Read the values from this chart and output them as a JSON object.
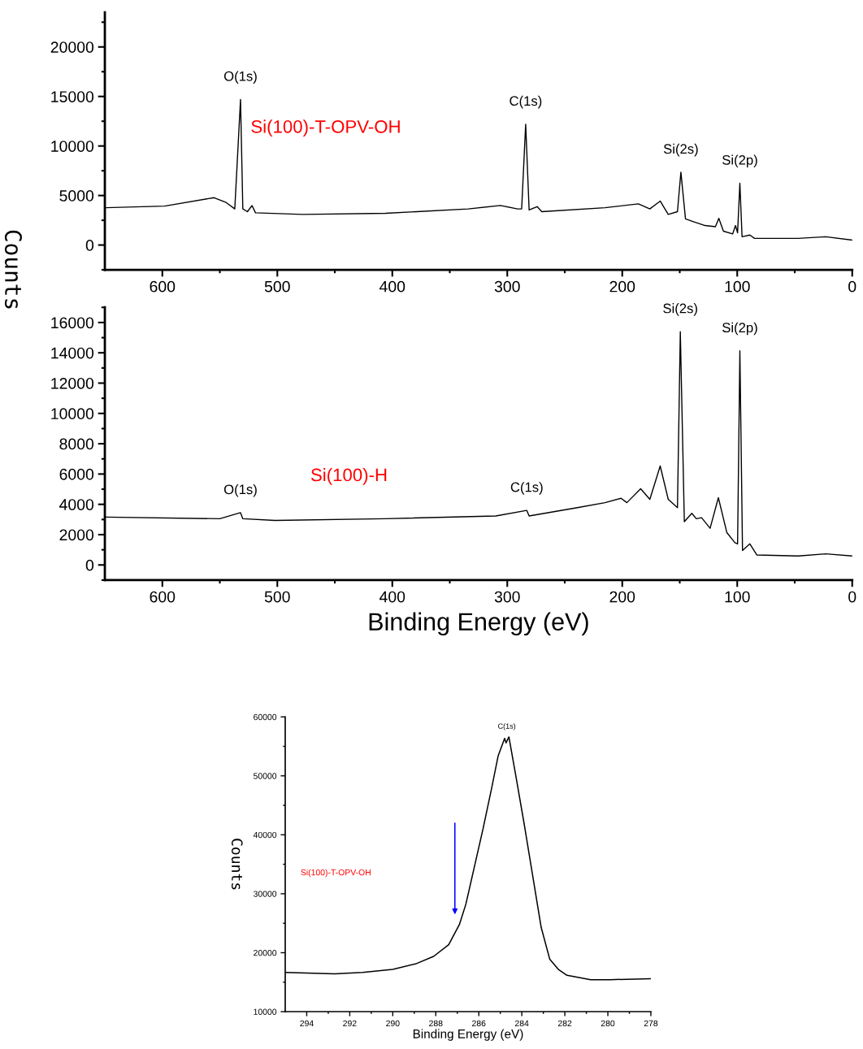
{
  "chart_data": [
    {
      "type": "line",
      "ylabel": "Counts",
      "x": [
        649,
        598,
        555,
        545,
        537,
        532,
        530,
        526,
        522,
        519,
        478,
        406,
        334,
        306,
        291,
        287.5,
        284,
        281,
        274,
        270,
        215,
        186,
        176,
        167,
        160,
        152,
        149,
        145,
        138,
        128,
        119,
        116,
        112,
        104,
        101.5,
        99.7,
        97.7,
        95.8,
        89,
        85,
        47,
        23,
        0
      ],
      "series": [
        {
          "color": "#000000",
          "values": [
            3770,
            3930,
            4780,
            4330,
            3650,
            14700,
            3650,
            3370,
            3990,
            3260,
            3090,
            3200,
            3650,
            3990,
            3650,
            3650,
            12200,
            3540,
            3880,
            3370,
            3770,
            4160,
            3650,
            4440,
            3090,
            3370,
            7360,
            2640,
            2360,
            1970,
            1850,
            2700,
            1400,
            1120,
            1970,
            1240,
            6240,
            840,
            1010,
            670,
            670,
            840,
            500
          ]
        }
      ],
      "xlim": [
        650,
        0
      ],
      "xticks": [
        600,
        {
          "value": 550,
          "label": null
        },
        500,
        {
          "value": 450,
          "label": null
        },
        400,
        {
          "value": 350,
          "label": null
        },
        300,
        {
          "value": 250,
          "label": null
        },
        200,
        {
          "value": 150,
          "label": null
        },
        100,
        {
          "value": 50,
          "label": null
        },
        0
      ],
      "ylim": [
        -2500,
        23500
      ],
      "yticks": [
        {
          "value": -2500,
          "label": null
        },
        0,
        {
          "value": 2500,
          "label": null
        },
        5000,
        {
          "value": 7500,
          "label": null
        },
        10000,
        {
          "value": 12500,
          "label": null
        },
        15000,
        {
          "value": 17500,
          "label": null
        },
        20000,
        {
          "value": 22500,
          "label": null
        }
      ],
      "grid": false,
      "legend": false,
      "annotations": [
        {
          "text": "O(1s)",
          "x": 532,
          "y": 14700
        },
        {
          "text": "C(1s)",
          "x": 284,
          "y": 12200
        },
        {
          "text": "Si(2s)",
          "x": 149,
          "y": 7360
        },
        {
          "text": "Si(2p)",
          "x": 97.7,
          "y": 6240
        },
        "Si(100)-T-OPV-OH"
      ]
    },
    {
      "type": "line",
      "xlabel": "Binding Energy (eV)",
      "x": [
        649,
        550,
        532,
        530,
        502,
        406,
        310,
        283,
        281,
        239,
        215,
        201,
        196,
        184,
        176,
        167,
        160,
        152,
        149.5,
        146,
        139.5,
        135.6,
        131,
        123.6,
        116.4,
        109,
        102,
        99.7,
        97.7,
        95.4,
        89,
        83,
        47,
        23,
        0
      ],
      "series": [
        {
          "color": "#000000",
          "values": [
            3160,
            3050,
            3450,
            3050,
            2940,
            3050,
            3230,
            3600,
            3230,
            3780,
            4110,
            4400,
            4110,
            5030,
            4330,
            6530,
            4330,
            3780,
            15400,
            2860,
            3410,
            3050,
            3120,
            2420,
            4440,
            2130,
            1470,
            1390,
            14130,
            950,
            1390,
            660,
            590,
            730,
            590
          ]
        }
      ],
      "xlim": [
        650,
        0
      ],
      "xticks": [
        600,
        {
          "value": 550,
          "label": null
        },
        500,
        {
          "value": 450,
          "label": null
        },
        400,
        {
          "value": 350,
          "label": null
        },
        300,
        {
          "value": 250,
          "label": null
        },
        200,
        {
          "value": 150,
          "label": null
        },
        100,
        {
          "value": 50,
          "label": null
        },
        0
      ],
      "ylim": [
        -1000,
        17000
      ],
      "yticks": [
        {
          "value": -1000,
          "label": null
        },
        0,
        {
          "value": 1000,
          "label": null
        },
        2000,
        {
          "value": 3000,
          "label": null
        },
        4000,
        {
          "value": 5000,
          "label": null
        },
        6000,
        {
          "value": 7000,
          "label": null
        },
        8000,
        {
          "value": 9000,
          "label": null
        },
        10000,
        {
          "value": 11000,
          "label": null
        },
        12000,
        {
          "value": 13000,
          "label": null
        },
        14000,
        {
          "value": 15000,
          "label": null
        },
        16000,
        {
          "value": 17000,
          "label": null
        }
      ],
      "grid": false,
      "legend": false,
      "annotations": [
        {
          "text": "O(1s)",
          "x": 532,
          "y": 3450
        },
        {
          "text": "C(1s)",
          "x": 283,
          "y": 3600
        },
        {
          "text": "Si(2s)",
          "x": 149.5,
          "y": 15400
        },
        {
          "text": "Si(2p)",
          "x": 97.7,
          "y": 14130
        },
        "Si(100)-H"
      ]
    },
    {
      "type": "line",
      "xlabel": "Binding Energy (eV)",
      "ylabel": "Counts",
      "x": [
        295,
        292.7,
        291.4,
        290.0,
        288.9,
        288.1,
        287.4,
        286.9,
        286.6,
        286.2,
        285.8,
        285.4,
        285.1,
        284.8,
        284.73,
        284.6,
        284.3,
        283.9,
        283.5,
        283.1,
        282.7,
        282.3,
        281.9,
        280.8,
        279.9,
        278
      ],
      "series": [
        {
          "color": "#000000",
          "values": [
            16660,
            16420,
            16660,
            17160,
            18150,
            19380,
            21350,
            24800,
            28250,
            34660,
            41070,
            47970,
            53400,
            56350,
            55600,
            56600,
            50440,
            42050,
            33180,
            24300,
            18880,
            17160,
            16170,
            15430,
            15430,
            15580
          ]
        }
      ],
      "xlim": [
        295,
        278
      ],
      "xticks": [
        294,
        {
          "value": 293,
          "label": null
        },
        292,
        {
          "value": 291,
          "label": null
        },
        290,
        {
          "value": 289,
          "label": null
        },
        288,
        {
          "value": 287,
          "label": null
        },
        286,
        {
          "value": 285,
          "label": null
        },
        284,
        {
          "value": 283,
          "label": null
        },
        282,
        {
          "value": 281,
          "label": null
        },
        280,
        {
          "value": 279,
          "label": null
        },
        278
      ],
      "ylim": [
        10000,
        60000
      ],
      "yticks": [
        10000,
        {
          "value": 15000,
          "label": null
        },
        20000,
        {
          "value": 25000,
          "label": null
        },
        30000,
        {
          "value": 35000,
          "label": null
        },
        40000,
        {
          "value": 45000,
          "label": null
        },
        50000,
        {
          "value": 55000,
          "label": null
        },
        60000
      ],
      "grid": false,
      "legend": false,
      "annotations": [
        {
          "text": "C(1s)",
          "x": 284.7,
          "y": 56600
        },
        "Si(100)-T-OPV-OH"
      ]
    }
  ]
}
